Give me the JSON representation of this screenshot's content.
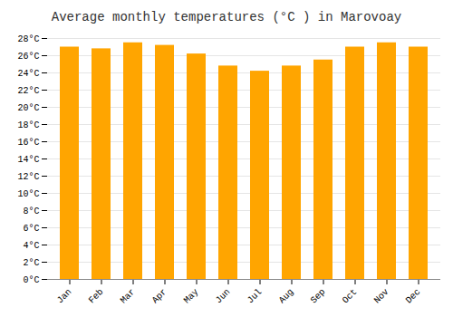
{
  "chart_data": {
    "type": "bar",
    "title": "Average monthly temperatures (°C ) in Marovoay",
    "categories": [
      "Jan",
      "Feb",
      "Mar",
      "Apr",
      "May",
      "Jun",
      "Jul",
      "Aug",
      "Sep",
      "Oct",
      "Nov",
      "Dec"
    ],
    "values": [
      27.0,
      26.8,
      27.5,
      27.2,
      26.2,
      24.8,
      24.2,
      24.8,
      25.5,
      27.0,
      27.5,
      27.0
    ],
    "color": "#FFA500",
    "ylim": [
      0,
      28
    ],
    "yticks": [
      {
        "value": 0,
        "label": "0°C"
      },
      {
        "value": 2,
        "label": "2°C"
      },
      {
        "value": 4,
        "label": "4°C"
      },
      {
        "value": 6,
        "label": "6°C"
      },
      {
        "value": 8,
        "label": "8°C"
      },
      {
        "value": 10,
        "label": "10°C"
      },
      {
        "value": 12,
        "label": "12°C"
      },
      {
        "value": 14,
        "label": "14°C"
      },
      {
        "value": 16,
        "label": "16°C"
      },
      {
        "value": 18,
        "label": "18°C"
      },
      {
        "value": 20,
        "label": "20°C"
      },
      {
        "value": 22,
        "label": "22°C"
      },
      {
        "value": 24,
        "label": "24°C"
      },
      {
        "value": 26,
        "label": "26°C"
      },
      {
        "value": 28,
        "label": "28°C"
      }
    ],
    "grid": true
  }
}
